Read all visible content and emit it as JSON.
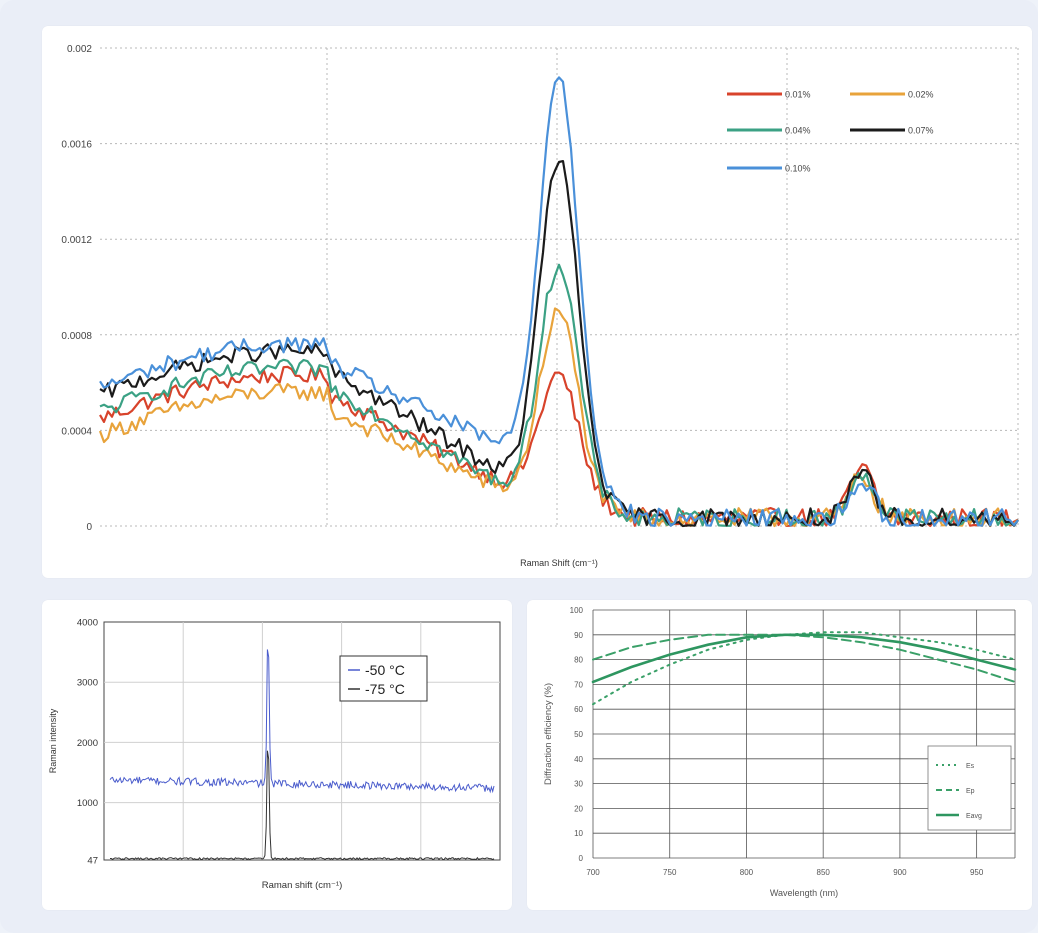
{
  "chart_data": [
    {
      "id": "raman-concentration",
      "type": "line",
      "title": "",
      "xlabel": "Raman Shift (cm⁻¹)",
      "ylabel": "",
      "ylim": [
        0,
        0.002
      ],
      "yticks": [
        "0",
        "0.0004",
        "0.0008",
        "0.0012",
        "0.0016",
        "0.002"
      ],
      "ytick_values": [
        0,
        0.0004,
        0.0008,
        0.0012,
        0.0016,
        0.002
      ],
      "grid": true,
      "legend_position": "top-right",
      "series": [
        {
          "name": "0.01%",
          "color": "#d8432b",
          "peak": 0.00064,
          "bump": 0.00024,
          "base": 0.00045,
          "mid": 0.00018,
          "tail": 3e-05
        },
        {
          "name": "0.02%",
          "color": "#e8a33b",
          "peak": 0.0009,
          "bump": 0.00021,
          "base": 0.00038,
          "mid": 0.00015,
          "tail": 3e-05
        },
        {
          "name": "0.04%",
          "color": "#3ba184",
          "peak": 0.0011,
          "bump": 0.00023,
          "base": 0.00048,
          "mid": 0.00017,
          "tail": 3e-05
        },
        {
          "name": "0.07%",
          "color": "#1b1b1b",
          "peak": 0.00154,
          "bump": 0.00021,
          "base": 0.00055,
          "mid": 0.00022,
          "tail": 3e-05
        },
        {
          "name": "0.10%",
          "color": "#4a90d9",
          "peak": 0.00191,
          "bump": 0.00018,
          "base": 0.00058,
          "mid": 0.00033,
          "tail": 3e-05
        }
      ]
    },
    {
      "id": "raman-temperature",
      "type": "line",
      "title": "",
      "xlabel": "Raman shift (cm⁻¹)",
      "ylabel": "Raman intensity",
      "ylim": [
        47,
        4000
      ],
      "yticks": [
        "47",
        "1000",
        "2000",
        "3000",
        "4000"
      ],
      "ytick_values": [
        47,
        1000,
        2000,
        3000,
        4000
      ],
      "grid": true,
      "legend_position": "top-right",
      "series": [
        {
          "name": "-50 °C",
          "color": "#4a5ccc",
          "base": 1330,
          "peak": 3830
        },
        {
          "name": "-75 °C",
          "color": "#333333",
          "base": 70,
          "peak": 2100
        }
      ]
    },
    {
      "id": "diffraction-efficiency",
      "type": "line",
      "title": "",
      "xlabel": "Wavelength (nm)",
      "ylabel": "Diffraction efficiency (%)",
      "xlim": [
        700,
        975
      ],
      "ylim": [
        0,
        100
      ],
      "xticks": [
        700,
        750,
        800,
        850,
        900,
        950
      ],
      "yticks": [
        0,
        10,
        20,
        30,
        40,
        50,
        60,
        70,
        80,
        90,
        100
      ],
      "grid": true,
      "legend_position": "bottom-right",
      "series": [
        {
          "name": "Es",
          "style": "dotted",
          "color": "#3aa068",
          "x": [
            700,
            725,
            750,
            775,
            800,
            825,
            850,
            875,
            900,
            925,
            950,
            975
          ],
          "y": [
            62,
            71,
            78,
            84,
            88,
            90,
            91,
            91,
            89,
            87,
            84,
            80
          ]
        },
        {
          "name": "Ep",
          "style": "dashed",
          "color": "#3aa068",
          "x": [
            700,
            725,
            750,
            775,
            800,
            825,
            850,
            875,
            900,
            925,
            950,
            975
          ],
          "y": [
            80,
            85,
            88,
            90,
            90,
            90,
            89,
            87,
            84,
            80,
            76,
            71
          ]
        },
        {
          "name": "Eavg",
          "style": "solid",
          "color": "#2e9660",
          "x": [
            700,
            725,
            750,
            775,
            800,
            825,
            850,
            875,
            900,
            925,
            950,
            975
          ],
          "y": [
            71,
            77,
            82,
            86,
            89,
            90,
            90,
            89,
            87,
            84,
            80,
            76
          ]
        }
      ]
    }
  ]
}
